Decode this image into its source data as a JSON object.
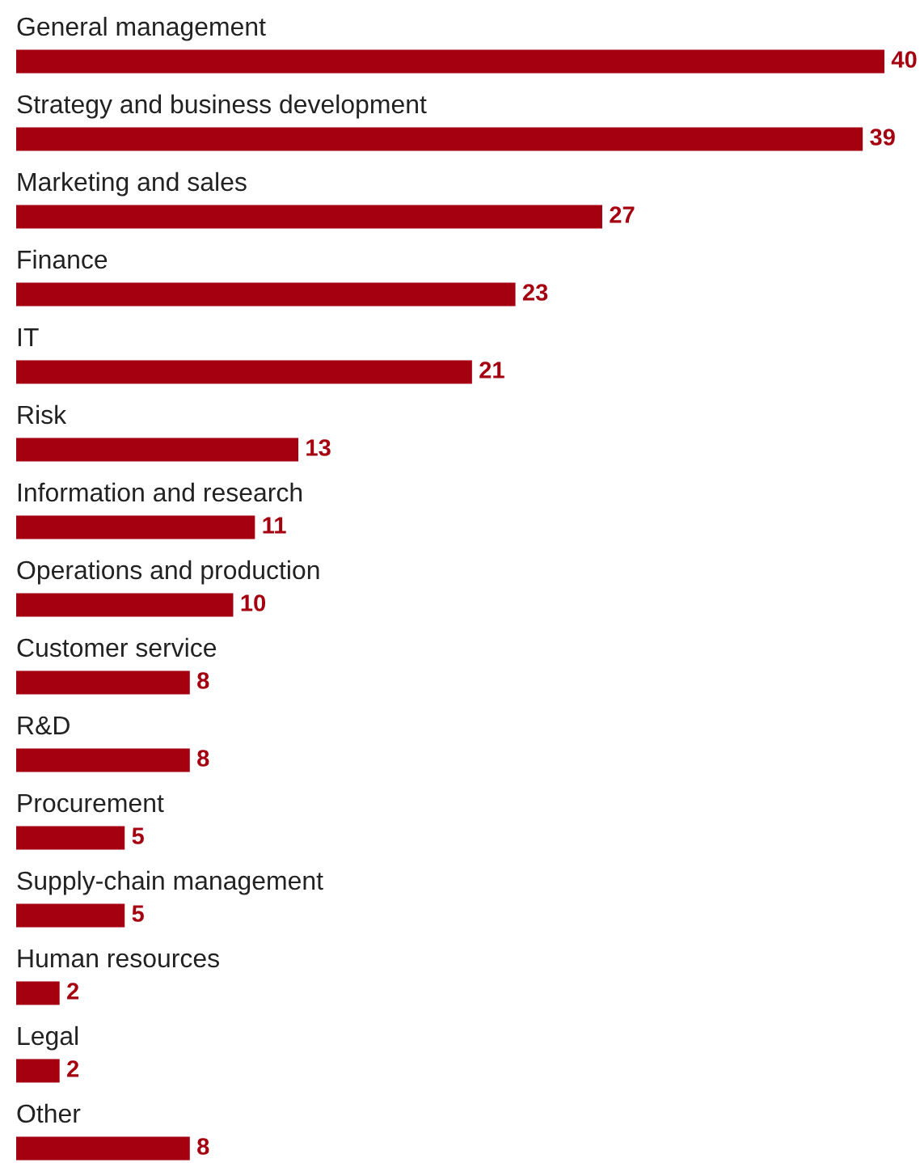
{
  "chart_data": {
    "type": "bar",
    "orientation": "horizontal",
    "categories": [
      "General management",
      "Strategy and business development",
      "Marketing and sales",
      "Finance",
      "IT",
      "Risk",
      "Information and research",
      "Operations and production",
      "Customer service",
      "R&D",
      "Procurement",
      "Supply-chain management",
      "Human resources",
      "Legal",
      "Other"
    ],
    "values": [
      40,
      39,
      27,
      23,
      21,
      13,
      11,
      10,
      8,
      8,
      5,
      5,
      2,
      2,
      8
    ],
    "color": "#a50010",
    "data_labels": true
  }
}
